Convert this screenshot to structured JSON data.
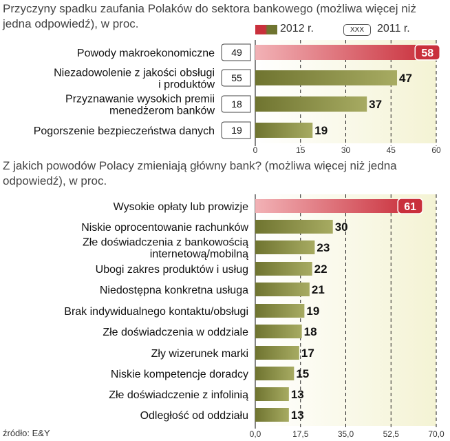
{
  "colors": {
    "bar_normal": "#6f7430",
    "bar_normal_light": "#a7ab62",
    "bar_highlight": "#c9303c",
    "bar_highlight_light": "#f2b2b6",
    "bg_band": "#f4f3d4"
  },
  "source": "źródło: E&Y",
  "legend": {
    "series_2012": "2012 r.",
    "series_2011": "2011 r.",
    "placeholder": "XXX"
  },
  "chart_data": [
    {
      "type": "bar",
      "title": "Przyczyny spadku zaufania Polaków do sektora bankowego (możliwa więcej niż jedna odpowiedź), w proc.",
      "categories": [
        "Powody makroekonomiczne",
        "Niezadowolenie z jakości obsługi i produktów",
        "Przyznawanie wysokich premii menedżerom banków",
        "Pogorszenie bezpieczeństwa danych"
      ],
      "label_lines": [
        [
          "Powody makroekonomiczne"
        ],
        [
          "Niezadowolenie z jakości obsługi",
          "i produktów"
        ],
        [
          "Przyznawanie wysokich premii",
          "menedżerom banków"
        ],
        [
          "Pogorszenie bezpieczeństwa danych"
        ]
      ],
      "series": [
        {
          "name": "2012 r.",
          "values": [
            58,
            47,
            37,
            19
          ]
        },
        {
          "name": "2011 r.",
          "values": [
            49,
            55,
            18,
            19
          ]
        }
      ],
      "highlight_index": 0,
      "xlim": [
        0,
        60
      ],
      "ticks": [
        "0",
        "15",
        "30",
        "45",
        "60"
      ]
    },
    {
      "type": "bar",
      "title": "Z jakich powodów Polacy zmieniają główny bank? (możliwa więcej niż jedna odpowiedź), w proc.",
      "categories": [
        "Wysokie opłaty lub prowizje",
        "Niskie oprocentowanie rachunków",
        "Złe doświadczenia z bankowością internetową/mobilną",
        "Ubogi zakres produktów i usług",
        "Niedostępna konkretna usługa",
        "Brak indywidualnego kontaktu/obsługi",
        "Złe doświadczenia w oddziale",
        "Zły wizerunek marki",
        "Niskie kompetencje doradcy",
        "Złe doświadczenie z infolinią",
        "Odległość od oddziału"
      ],
      "label_lines": [
        [
          "Wysokie opłaty lub prowizje"
        ],
        [
          "Niskie oprocentowanie rachunków"
        ],
        [
          "Złe doświadczenia z bankowością",
          "internetową/mobilną"
        ],
        [
          "Ubogi zakres produktów i usług"
        ],
        [
          "Niedostępna konkretna usługa"
        ],
        [
          "Brak indywidualnego kontaktu/obsługi"
        ],
        [
          "Złe doświadczenia w oddziale"
        ],
        [
          "Zły wizerunek marki"
        ],
        [
          "Niskie kompetencje doradcy"
        ],
        [
          "Złe doświadczenie z infolinią"
        ],
        [
          "Odległość od oddziału"
        ]
      ],
      "series": [
        {
          "name": "2012 r.",
          "values": [
            61,
            30,
            23,
            22,
            21,
            19,
            18,
            17,
            15,
            13,
            13
          ]
        }
      ],
      "highlight_index": 0,
      "xlim": [
        0,
        70
      ],
      "ticks": [
        "0,0",
        "17,5",
        "35,0",
        "52,5",
        "70,0"
      ]
    }
  ]
}
